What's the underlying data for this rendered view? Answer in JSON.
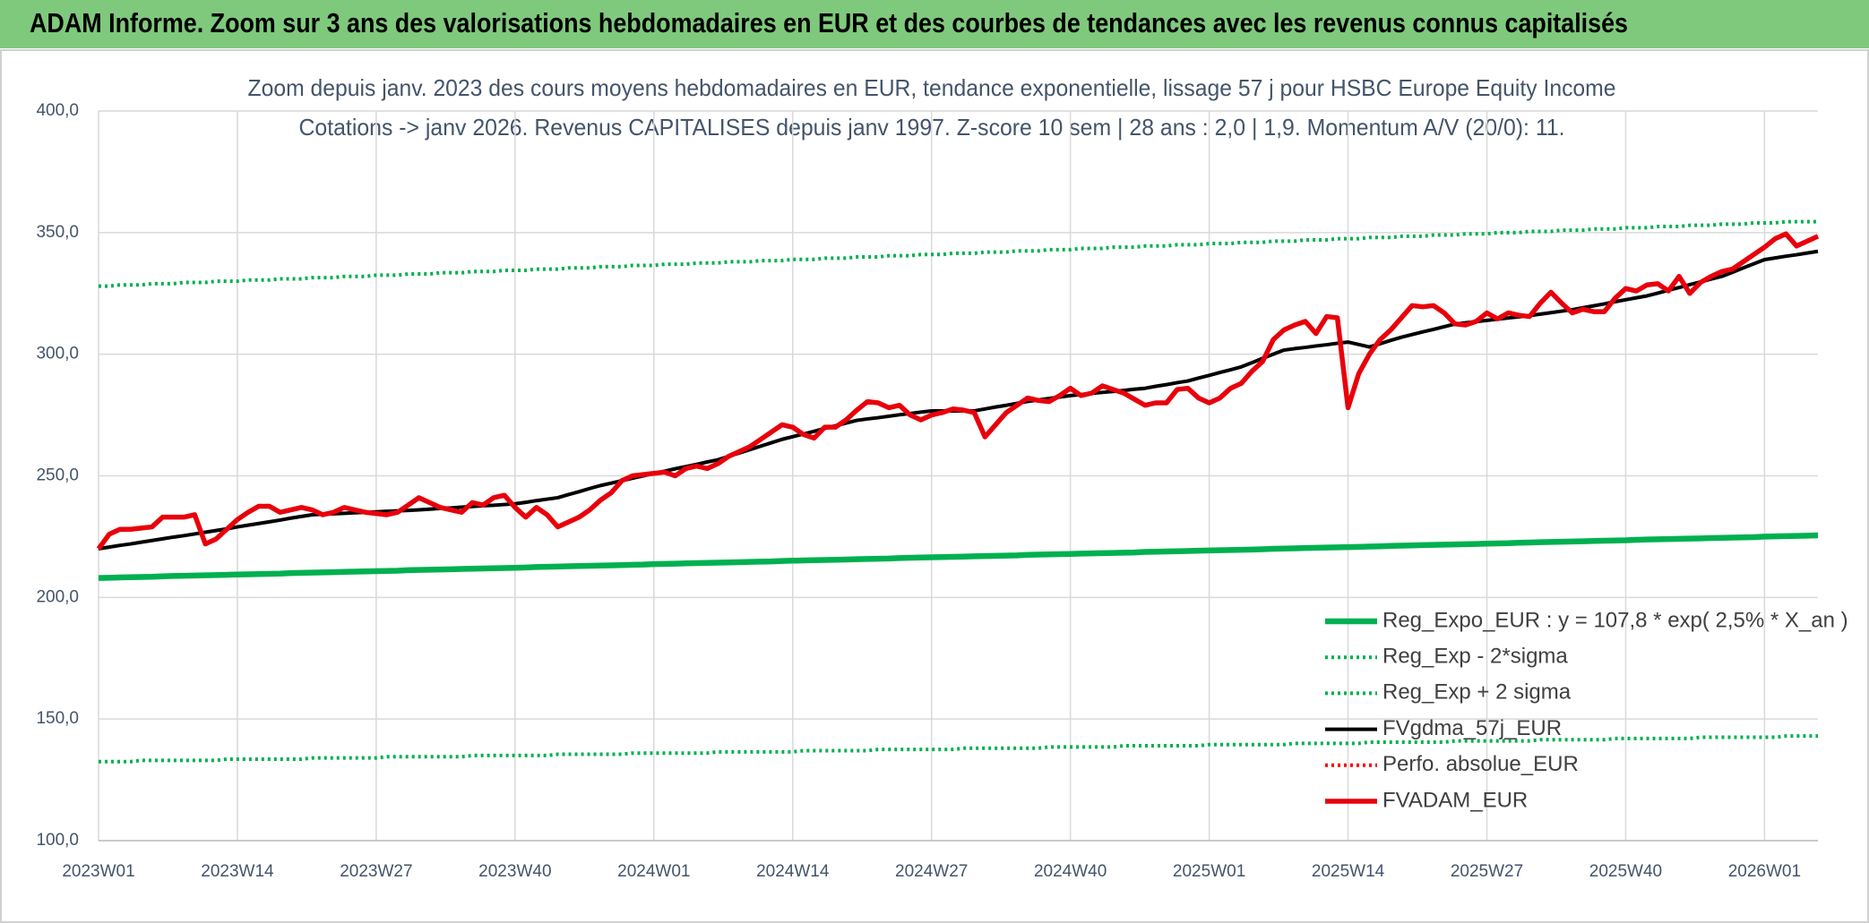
{
  "header": {
    "title": "ADAM Informe. Zoom sur 3 ans des valorisations hebdomadaires en EUR et des courbes de tendances avec les revenus connus capitalisés"
  },
  "chart_data": {
    "type": "line",
    "title": "Zoom depuis janv. 2023 des cours moyens hebdomadaires en EUR, tendance exponentielle, lissage 57 j pour HSBC Europe Equity Income",
    "subtitle": "Cotations -> janv 2026. Revenus CAPITALISES depuis janv 1997. Z-score 10 sem | 28 ans : 2,0 | 1,9. Momentum A/V (20/0): 11.",
    "categories": [
      "2023W01",
      null,
      null,
      null,
      null,
      null,
      null,
      null,
      null,
      null,
      null,
      null,
      null,
      "2023W14",
      null,
      null,
      null,
      null,
      null,
      null,
      null,
      null,
      null,
      null,
      null,
      null,
      "2023W27",
      null,
      null,
      null,
      null,
      null,
      null,
      null,
      null,
      null,
      null,
      null,
      null,
      "2023W40",
      null,
      null,
      null,
      null,
      null,
      null,
      null,
      null,
      null,
      null,
      null,
      null,
      "2024W01",
      null,
      null,
      null,
      null,
      null,
      null,
      null,
      null,
      null,
      null,
      null,
      null,
      "2024W14",
      null,
      null,
      null,
      null,
      null,
      null,
      null,
      null,
      null,
      null,
      null,
      null,
      "2024W27",
      null,
      null,
      null,
      null,
      null,
      null,
      null,
      null,
      null,
      null,
      null,
      null,
      "2024W40",
      null,
      null,
      null,
      null,
      null,
      null,
      null,
      null,
      null,
      null,
      null,
      null,
      "2025W01",
      null,
      null,
      null,
      null,
      null,
      null,
      null,
      null,
      null,
      null,
      null,
      null,
      "2025W14",
      null,
      null,
      null,
      null,
      null,
      null,
      null,
      null,
      null,
      null,
      null,
      null,
      "2025W27",
      null,
      null,
      null,
      null,
      null,
      null,
      null,
      null,
      null,
      null,
      null,
      null,
      "2025W40",
      null,
      null,
      null,
      null,
      null,
      null,
      null,
      null,
      null,
      null,
      null,
      null,
      "2026W01",
      null,
      null,
      null,
      null,
      null
    ],
    "ylim": [
      100,
      400
    ],
    "yticks": [
      {
        "value": 100,
        "label": "100,0"
      },
      {
        "value": 150,
        "label": "150,0"
      },
      {
        "value": 200,
        "label": "200,0"
      },
      {
        "value": 250,
        "label": "250,0"
      },
      {
        "value": 300,
        "label": "300,0"
      },
      {
        "value": 350,
        "label": "350,0"
      },
      {
        "value": 400,
        "label": "400,0"
      }
    ],
    "grid": true,
    "legend": "lower right",
    "series": [
      {
        "name": "Reg_Expo_EUR : y = 107,8 * exp( 2,5% *  X_an )",
        "color": "#00b050",
        "line_style": "solid",
        "values": [
          208.0,
          208.1,
          208.2,
          208.3,
          208.4,
          208.5,
          208.7,
          208.8,
          208.9,
          209.0,
          209.1,
          209.2,
          209.3,
          209.4,
          209.5,
          209.6,
          209.7,
          209.8,
          210.0,
          210.1,
          210.2,
          210.3,
          210.4,
          210.5,
          210.6,
          210.7,
          210.8,
          210.9,
          211.0,
          211.2,
          211.3,
          211.4,
          211.5,
          211.6,
          211.7,
          211.8,
          211.9,
          212.0,
          212.1,
          212.2,
          212.3,
          212.5,
          212.6,
          212.7,
          212.8,
          212.9,
          213.0,
          213.1,
          213.2,
          213.3,
          213.4,
          213.5,
          213.7,
          213.8,
          213.9,
          214.0,
          214.1,
          214.2,
          214.3,
          214.4,
          214.5,
          214.6,
          214.7,
          214.8,
          215.0,
          215.1,
          215.2,
          215.3,
          215.4,
          215.5,
          215.6,
          215.7,
          215.8,
          215.9,
          216.0,
          216.2,
          216.3,
          216.4,
          216.5,
          216.6,
          216.7,
          216.8,
          216.9,
          217.0,
          217.1,
          217.2,
          217.3,
          217.5,
          217.6,
          217.7,
          217.8,
          217.9,
          218.0,
          218.1,
          218.2,
          218.3,
          218.4,
          218.5,
          218.7,
          218.8,
          218.9,
          219.0,
          219.1,
          219.2,
          219.3,
          219.4,
          219.5,
          219.6,
          219.7,
          219.8,
          220.0,
          220.1,
          220.2,
          220.3,
          220.4,
          220.5,
          220.6,
          220.7,
          220.8,
          220.9,
          221.0,
          221.2,
          221.3,
          221.4,
          221.5,
          221.6,
          221.7,
          221.8,
          221.9,
          222.0,
          222.1,
          222.2,
          222.3,
          222.5,
          222.6,
          222.7,
          222.8,
          222.9,
          223.0,
          223.1,
          223.2,
          223.3,
          223.4,
          223.5,
          223.7,
          223.8,
          223.9,
          224.0,
          224.1,
          224.2,
          224.3,
          224.4,
          224.5,
          224.6,
          224.7,
          224.8,
          225.0,
          225.1,
          225.2,
          225.3,
          225.4,
          225.5
        ]
      },
      {
        "name": "Reg_Exp - 2*sigma",
        "color": "#00b050",
        "line_style": "dotted",
        "values": [
          132.5,
          132.5,
          132.5,
          132.5,
          133,
          133,
          133,
          133,
          133,
          133,
          133,
          133,
          133.5,
          133.5,
          133.5,
          133.5,
          133.5,
          133.5,
          133.5,
          133.5,
          134,
          134,
          134,
          134,
          134,
          134,
          134,
          134.5,
          134.5,
          134.5,
          134.5,
          134.5,
          134.5,
          134.5,
          134.5,
          135,
          135,
          135,
          135,
          135,
          135,
          135,
          135,
          135.5,
          135.5,
          135.5,
          135.5,
          135.5,
          135.5,
          135.5,
          136,
          136,
          136,
          136,
          136,
          136,
          136,
          136,
          136.5,
          136.5,
          136.5,
          136.5,
          136.5,
          136.5,
          136.5,
          136.5,
          137,
          137,
          137,
          137,
          137,
          137,
          137,
          137.5,
          137.5,
          137.5,
          137.5,
          137.5,
          137.5,
          137.5,
          137.5,
          138,
          138,
          138,
          138,
          138,
          138,
          138,
          138,
          138.5,
          138.5,
          138.5,
          138.5,
          138.5,
          138.5,
          138.5,
          139,
          139,
          139,
          139,
          139,
          139,
          139,
          139,
          139.5,
          139.5,
          139.5,
          139.5,
          139.5,
          139.5,
          139.5,
          139.5,
          140,
          140,
          140,
          140,
          140,
          140,
          140,
          140.5,
          140.5,
          140.5,
          140.5,
          140.5,
          140.5,
          140.5,
          140.5,
          141,
          141,
          141,
          141,
          141,
          141,
          141,
          141,
          141.5,
          141.5,
          141.5,
          141.5,
          141.5,
          141.5,
          141.5,
          142,
          142,
          142,
          142,
          142,
          142,
          142,
          142,
          142.5,
          142.5,
          142.5,
          142.5,
          142.5,
          142.5,
          142.5,
          142.5,
          143,
          143,
          143,
          143
        ]
      },
      {
        "name": "Reg_Exp + 2 sigma",
        "color": "#00b050",
        "line_style": "dotted",
        "values": [
          328,
          328,
          328.5,
          328.5,
          328.5,
          329,
          329,
          329,
          329.5,
          329.5,
          329.5,
          330,
          330,
          330,
          330.5,
          330.5,
          330.5,
          331,
          331,
          331,
          331.5,
          331.5,
          331.5,
          332,
          332,
          332,
          332.5,
          332.5,
          332.5,
          333,
          333,
          333,
          333.5,
          333.5,
          333.5,
          334,
          334,
          334,
          334.5,
          334.5,
          334.5,
          335,
          335,
          335,
          335.5,
          335.5,
          335.5,
          336,
          336,
          336,
          336.5,
          336.5,
          336.5,
          337,
          337,
          337,
          337.5,
          337.5,
          337.5,
          338,
          338,
          338,
          338.5,
          338.5,
          338.5,
          339,
          339,
          339,
          339.5,
          339.5,
          339.5,
          340,
          340,
          340,
          340.5,
          340.5,
          340.5,
          341,
          341,
          341,
          341.5,
          341.5,
          341.5,
          342,
          342,
          342,
          342.5,
          342.5,
          342.5,
          343,
          343,
          343,
          343.5,
          343.5,
          343.5,
          344,
          344,
          344,
          344.5,
          344.5,
          344.5,
          345,
          345,
          345,
          345.5,
          345.5,
          345.5,
          346,
          346,
          346,
          346.5,
          346.5,
          346.5,
          347,
          347,
          347,
          347.5,
          347.5,
          347.5,
          348,
          348,
          348,
          348.5,
          348.5,
          348.5,
          349,
          349,
          349,
          349.5,
          349.5,
          349.5,
          350,
          350,
          350,
          350.5,
          350.5,
          350.5,
          351,
          351,
          351,
          351.5,
          351.5,
          351.5,
          352,
          352,
          352,
          352.5,
          352.5,
          352.5,
          353,
          353,
          353,
          353.5,
          353.5,
          353.5,
          354,
          354,
          354,
          354.5,
          354.5,
          354.5,
          354.5
        ]
      },
      {
        "name": "FVgdma_57j_EUR",
        "color": "#000000",
        "line_style": "solid",
        "values": [
          220,
          220.7,
          221.4,
          222.0,
          222.7,
          223.4,
          224.1,
          224.8,
          225.4,
          226.1,
          226.8,
          227.5,
          228.2,
          229.0,
          229.7,
          230.4,
          231.1,
          231.8,
          232.6,
          233.3,
          234.0,
          234.2,
          234.4,
          234.6,
          234.8,
          235.0,
          235.2,
          235.4,
          235.6,
          235.8,
          236.0,
          236.3,
          236.6,
          236.8,
          237.1,
          237.4,
          237.7,
          237.9,
          238.2,
          238.5,
          239.1,
          239.8,
          240.4,
          241.0,
          242.3,
          243.5,
          244.8,
          246.0,
          247.0,
          248.0,
          249.0,
          250.0,
          251.0,
          251.9,
          252.9,
          253.8,
          254.7,
          255.7,
          256.6,
          258.0,
          259.4,
          260.8,
          262.2,
          263.6,
          265.0,
          266.1,
          267.2,
          268.3,
          269.5,
          270.6,
          271.7,
          272.8,
          273.4,
          273.9,
          274.5,
          275.1,
          275.6,
          276.2,
          276.7,
          276.7,
          276.7,
          276.7,
          276.7,
          277.5,
          278.3,
          279.0,
          279.8,
          280.6,
          281.2,
          281.8,
          282.4,
          283.0,
          283.4,
          283.9,
          284.3,
          284.7,
          285.1,
          285.6,
          286.0,
          286.8,
          287.5,
          288.3,
          289.0,
          290.2,
          291.3,
          292.5,
          293.6,
          294.8,
          296.5,
          298.3,
          300.0,
          301.7,
          302.3,
          302.8,
          303.4,
          303.9,
          304.5,
          305.0,
          304.0,
          303.0,
          304.3,
          305.7,
          307.0,
          308.1,
          309.2,
          310.2,
          311.3,
          312.4,
          312.9,
          313.4,
          313.9,
          314.4,
          314.9,
          315.4,
          315.9,
          316.5,
          317.1,
          317.7,
          318.3,
          319.1,
          319.9,
          320.7,
          321.6,
          322.4,
          323.2,
          324.0,
          325.1,
          326.3,
          327.4,
          328.6,
          329.7,
          330.9,
          332.0,
          333.7,
          335.5,
          337.2,
          338.9,
          339.6,
          340.3,
          340.9,
          341.6,
          342.3
        ]
      },
      {
        "name": "Perfo. absolue_EUR",
        "color": "#ff0000",
        "line_style": "dotted",
        "values": [
          null,
          null,
          null,
          null,
          null,
          null,
          null,
          null,
          null,
          null,
          null,
          null,
          null,
          null,
          null,
          null,
          null,
          null,
          null,
          null,
          null,
          null,
          null,
          null,
          null,
          null,
          null,
          null,
          null,
          null,
          null,
          null,
          null,
          null,
          null,
          null,
          null,
          null,
          null,
          null,
          null,
          null,
          null,
          null,
          null,
          null,
          null,
          null,
          null,
          null,
          null,
          null,
          null,
          null,
          null,
          null,
          null,
          null,
          null,
          null,
          null,
          null,
          null,
          null,
          null,
          null,
          null,
          null,
          null,
          null,
          null,
          null,
          null,
          null,
          null,
          null,
          null,
          null,
          null,
          null,
          null,
          null,
          null,
          null,
          null,
          null,
          null,
          null,
          null,
          null,
          null,
          null,
          null,
          null,
          null,
          null,
          null,
          null,
          null,
          null,
          null,
          null,
          null,
          null,
          null,
          null,
          null,
          null,
          null,
          null,
          null,
          null,
          null,
          null,
          null,
          null,
          null,
          null,
          null,
          null,
          null,
          null,
          null,
          null,
          null,
          null,
          null,
          null,
          null,
          null,
          null,
          null,
          null,
          null,
          null,
          null,
          null,
          null,
          null,
          null,
          null,
          null,
          null,
          null,
          null,
          null,
          null,
          null,
          null,
          null,
          null,
          null,
          null,
          null,
          null,
          null,
          null,
          null,
          null,
          null,
          null,
          null
        ]
      },
      {
        "name": "FVADAM_EUR",
        "color": "#e8000b",
        "line_style": "solid",
        "values": [
          220,
          226,
          228,
          228,
          228.5,
          229,
          233,
          233,
          233,
          234,
          222,
          224,
          228,
          232,
          235,
          237.5,
          237.5,
          235,
          236,
          237,
          236,
          234,
          235,
          237,
          236,
          235,
          234.5,
          234,
          235,
          238,
          241,
          239,
          237,
          236,
          235,
          239,
          238,
          241,
          242,
          237,
          233,
          237,
          234,
          229,
          231,
          233,
          236,
          240,
          243,
          248,
          250,
          250.5,
          251,
          251.5,
          250,
          253,
          254,
          253,
          255,
          258,
          260,
          262,
          265,
          268,
          271,
          270,
          267,
          265.5,
          270,
          270,
          273,
          277,
          280.5,
          280,
          278,
          279,
          275,
          273,
          275,
          276,
          277.5,
          277,
          276,
          266,
          271,
          276,
          279,
          282,
          281,
          280.5,
          283,
          286,
          283,
          284,
          287,
          285.5,
          284,
          281.5,
          279,
          280,
          280,
          285.5,
          286,
          282,
          280,
          282,
          286,
          288,
          293,
          297,
          306,
          310,
          312,
          313.5,
          308.5,
          315.5,
          315,
          278,
          292,
          300,
          306,
          310,
          315,
          320,
          319.5,
          320,
          317,
          312.5,
          312,
          313.5,
          317,
          314.5,
          317,
          316,
          315.5,
          321,
          325.5,
          321,
          317,
          318.5,
          317.5,
          317.5,
          323,
          327,
          326,
          328.5,
          329,
          326,
          332,
          325,
          329.5,
          332,
          334,
          335,
          338,
          341,
          344,
          347.5,
          349.5,
          344.5,
          346.5,
          348.5
        ]
      }
    ]
  }
}
